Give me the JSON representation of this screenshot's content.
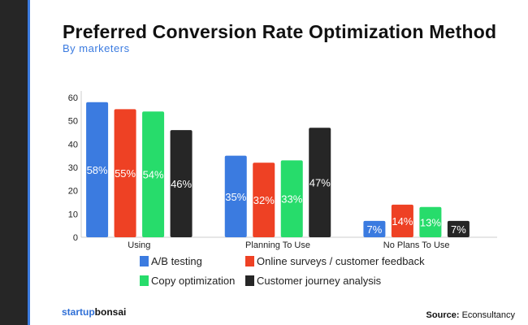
{
  "chart_data": {
    "type": "bar",
    "title": "Preferred Conversion Rate Optimization Method",
    "subtitle": "By marketers",
    "categories": [
      "Using",
      "Planning To Use",
      "No Plans To Use"
    ],
    "series": [
      {
        "name": "A/B testing",
        "color": "#3b7be0",
        "values": [
          58,
          35,
          7
        ]
      },
      {
        "name": "Online surveys / customer feedback",
        "color": "#ee4124",
        "values": [
          55,
          32,
          14
        ]
      },
      {
        "name": "Copy optimization",
        "color": "#27dc6b",
        "values": [
          54,
          33,
          13
        ]
      },
      {
        "name": "Customer journey analysis",
        "color": "#262626",
        "values": [
          46,
          47,
          7
        ]
      }
    ],
    "ylim": [
      0,
      60
    ],
    "yticks": [
      0,
      10,
      20,
      30,
      40,
      50,
      60
    ],
    "data_label_suffix": "%",
    "grid": false,
    "legend_placement": "bottom"
  },
  "footer": {
    "brand_part1": "startup",
    "brand_part2": "bonsai",
    "source_label": "Source:",
    "source_value": " Econsultancy"
  }
}
